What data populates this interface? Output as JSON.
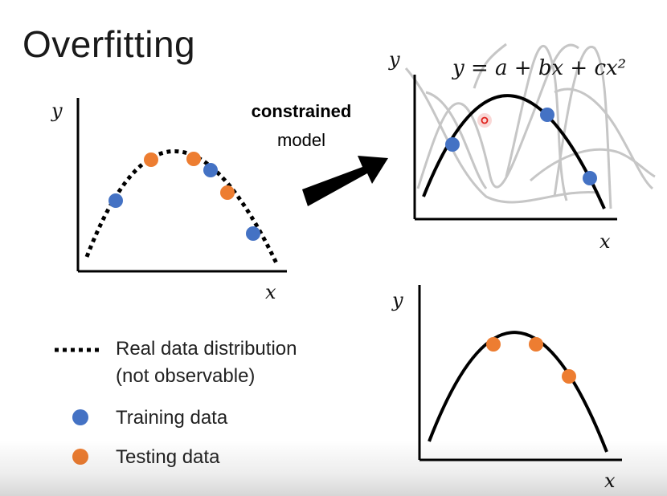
{
  "title": "Overfitting",
  "arrow": {
    "label_strong": "constrained",
    "label_plain": "model"
  },
  "left_plot": {
    "y_label": "y",
    "x_label": "x"
  },
  "top_right_plot": {
    "y_label": "y",
    "x_label": "x",
    "formula": "y = a + bx + cx²"
  },
  "bottom_right_plot": {
    "y_label": "y",
    "x_label": "x"
  },
  "legend": {
    "real": "Real data distribution",
    "real_note": "(not observable)",
    "training": "Training data",
    "testing": "Testing data"
  },
  "colors": {
    "training": "#4472c4",
    "testing": "#ed7d31",
    "curve": "#000000",
    "candidate": "#c0c0c0",
    "pointer": "#e0201b"
  },
  "icons": {
    "arrow": "thick-arrow-icon",
    "pointer": "cursor-dot-icon"
  }
}
